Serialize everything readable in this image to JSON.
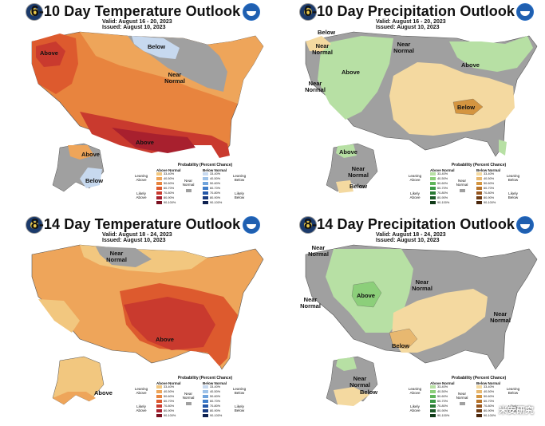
{
  "panels": [
    {
      "title": "6-10 Day Temperature Outlook",
      "valid": "Valid:  August 16 - 20, 2023",
      "issued": "Issued:  August 10, 2023",
      "labels": [
        "Above",
        "Below",
        "Near Normal",
        "Above",
        "Above",
        "Below"
      ],
      "legend": {
        "title": "Probability (Percent Chance)",
        "left_head": "Above Normal",
        "right_head": "Below Normal",
        "left_side": "Leaning Above",
        "left_side2": "Likely Above",
        "right_side": "Leaning Below",
        "right_side2": "Likely Below",
        "near": "Near Normal",
        "bins": [
          "33-40%",
          "40-50%",
          "50-60%",
          "60-70%",
          "70-80%",
          "80-90%",
          "90-100%"
        ]
      }
    },
    {
      "title": "6-10 Day Precipitation Outlook",
      "valid": "Valid:  August 16 - 20, 2023",
      "issued": "Issued:  August 10, 2023",
      "labels": [
        "Below",
        "Near Normal",
        "Above",
        "Near Normal",
        "Above",
        "Near Normal",
        "Below",
        "Near Normal",
        "Above",
        "Below"
      ],
      "legend": {
        "title": "Probability (Percent Chance)",
        "left_head": "Above Normal",
        "right_head": "Below Normal",
        "left_side": "Leaning Above",
        "left_side2": "Likely Above",
        "right_side": "Leaning Below",
        "right_side2": "Likely Below",
        "near": "Near Normal",
        "bins": [
          "33-40%",
          "40-50%",
          "50-60%",
          "60-70%",
          "70-80%",
          "80-90%",
          "90-100%"
        ]
      }
    },
    {
      "title": "8-14 Day Temperature Outlook",
      "valid": "Valid:  August 18 - 24, 2023",
      "issued": "Issued:  August 10, 2023",
      "labels": [
        "Near Normal",
        "Above",
        "Above"
      ],
      "legend": {
        "title": "Probability (Percent Chance)",
        "left_head": "Above Normal",
        "right_head": "Below Normal",
        "left_side": "Leaning Above",
        "left_side2": "Likely Above",
        "right_side": "Leaning Below",
        "right_side2": "Likely Below",
        "near": "Near Normal",
        "bins": [
          "33-40%",
          "40-50%",
          "50-60%",
          "60-70%",
          "70-80%",
          "80-90%",
          "90-100%"
        ]
      }
    },
    {
      "title": "8-14 Day Precipitation Outlook",
      "valid": "Valid:  August 18 - 24, 2023",
      "issued": "Issued:  August 10, 2023",
      "labels": [
        "Near Normal",
        "Above",
        "Near Normal",
        "Near Normal",
        "Near Normal",
        "Below",
        "Near Normal",
        "Below"
      ],
      "legend": {
        "title": "Probability (Percent Chance)",
        "left_head": "Above Normal",
        "right_head": "Below Normal",
        "left_side": "Leaning Above",
        "left_side2": "Likely Above",
        "right_side": "Leaning Below",
        "right_side2": "Likely Below",
        "near": "Near Normal",
        "bins": [
          "33-40%",
          "40-50%",
          "50-60%",
          "60-70%",
          "70-80%",
          "80-90%",
          "90-100%"
        ]
      }
    }
  ],
  "watermark": "米安研究",
  "colors": {
    "above_temp": [
      "#f2c77f",
      "#eea55a",
      "#e8843e",
      "#dd5a2e",
      "#c93a2e",
      "#a8202e",
      "#7a1020"
    ],
    "below_temp": [
      "#c7d9ef",
      "#9ec2e8",
      "#6fa3dc",
      "#3f7dc9",
      "#2457a8",
      "#183a80",
      "#0e2150"
    ],
    "above_precip": [
      "#b7e0a4",
      "#8ccf7a",
      "#5fb55a",
      "#3b9a45",
      "#2a7a35",
      "#1d5a28",
      "#103a18"
    ],
    "below_precip": [
      "#f4d9a0",
      "#e8b870",
      "#d49540",
      "#b8742a",
      "#96561e",
      "#703c14",
      "#4a260c"
    ],
    "near_normal": "#a0a0a0"
  }
}
